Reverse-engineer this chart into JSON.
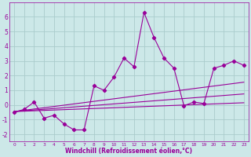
{
  "xlabel": "Windchill (Refroidissement éolien,°C)",
  "background_color": "#cce8e8",
  "grid_color": "#aacccc",
  "line_color": "#990099",
  "xlim": [
    -0.5,
    23.5
  ],
  "ylim": [
    -2.5,
    7.0
  ],
  "yticks": [
    -2,
    -1,
    0,
    1,
    2,
    3,
    4,
    5,
    6
  ],
  "xticks": [
    0,
    1,
    2,
    3,
    4,
    5,
    6,
    7,
    8,
    9,
    10,
    11,
    12,
    13,
    14,
    15,
    16,
    17,
    18,
    19,
    20,
    21,
    22,
    23
  ],
  "data_x": [
    0,
    1,
    2,
    3,
    4,
    5,
    6,
    7,
    8,
    9,
    10,
    11,
    12,
    13,
    14,
    15,
    16,
    17,
    18,
    19,
    20,
    21,
    22,
    23
  ],
  "data_y": [
    -0.5,
    -0.3,
    0.2,
    -0.9,
    -0.7,
    -1.3,
    -1.7,
    -1.7,
    1.3,
    1.0,
    1.9,
    3.2,
    2.6,
    6.3,
    4.6,
    3.2,
    2.5,
    -0.05,
    0.2,
    0.1,
    2.5,
    2.7,
    3.0,
    2.7
  ],
  "reg_lines": [
    {
      "x": [
        0,
        23
      ],
      "y": [
        -0.45,
        1.55
      ]
    },
    {
      "x": [
        0,
        23
      ],
      "y": [
        -0.45,
        0.75
      ]
    },
    {
      "x": [
        0,
        23
      ],
      "y": [
        -0.45,
        0.15
      ]
    }
  ],
  "xlabel_fontsize": 5.5,
  "xlabel_color": "#990099",
  "tick_fontsize_x": 4.2,
  "tick_fontsize_y": 5.5,
  "marker_size": 2.2,
  "line_width": 0.8
}
